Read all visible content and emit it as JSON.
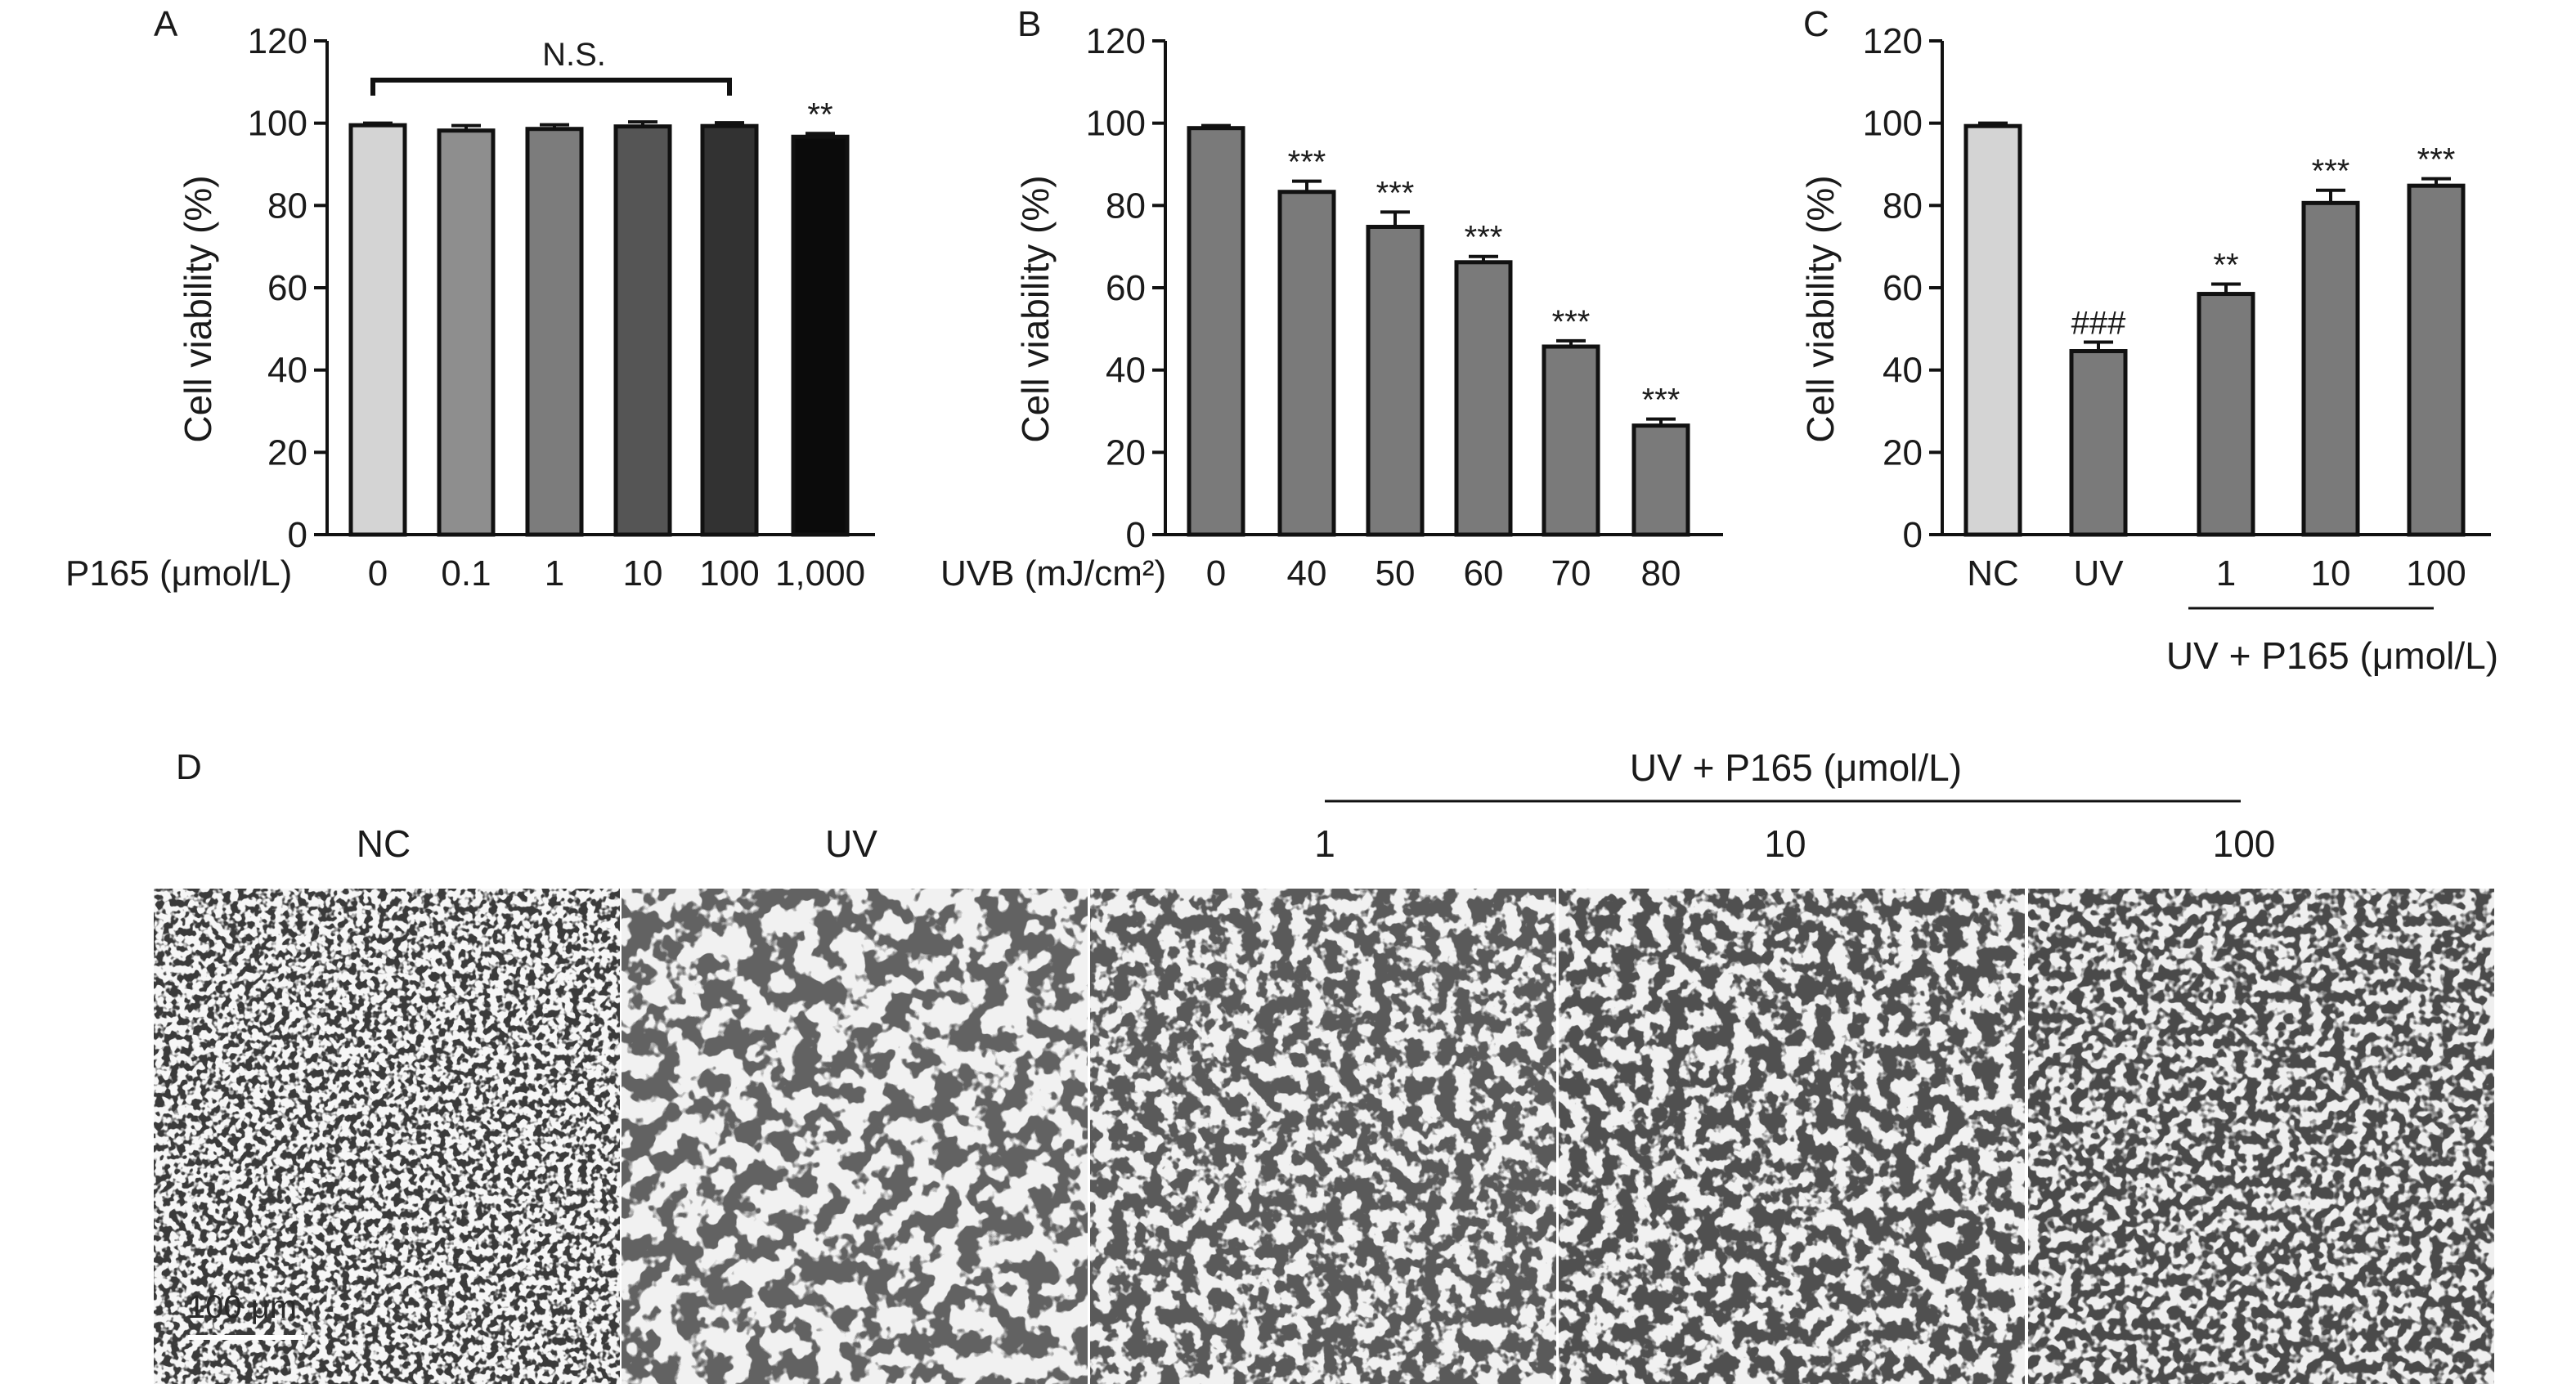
{
  "chart_data": [
    {
      "panel": "A",
      "type": "bar",
      "x_axis_label": "P165 (μmol/L)",
      "ylabel": "Cell viability (%)",
      "ylim": [
        0,
        120
      ],
      "yticks": [
        0,
        20,
        40,
        60,
        80,
        100,
        120
      ],
      "categories": [
        "0",
        "0.1",
        "1",
        "10",
        "100",
        "1,000"
      ],
      "values": [
        99.5,
        98.2,
        98.6,
        99.2,
        99.3,
        96.7
      ],
      "errors": [
        0.5,
        1.2,
        1.0,
        1.1,
        0.8,
        0.8
      ],
      "bar_colors": [
        "#d4d4d4",
        "#8e8e8e",
        "#7c7c7c",
        "#555555",
        "#323232",
        "#0b0b0b"
      ],
      "significance": [
        "",
        "",
        "",
        "",
        "",
        "**"
      ],
      "bracket_label": "N.S."
    },
    {
      "panel": "B",
      "type": "bar",
      "x_axis_label": "UVB (mJ/cm²)",
      "ylabel": "Cell viability (%)",
      "ylim": [
        0,
        120
      ],
      "yticks": [
        0,
        20,
        40,
        60,
        80,
        100,
        120
      ],
      "categories": [
        "0",
        "40",
        "50",
        "60",
        "70",
        "80"
      ],
      "values": [
        98.8,
        83.3,
        74.8,
        66.2,
        45.7,
        26.5
      ],
      "errors": [
        0.6,
        2.6,
        3.6,
        1.4,
        1.4,
        1.6
      ],
      "bar_colors": [
        "#7a7a7a",
        "#7a7a7a",
        "#7a7a7a",
        "#7a7a7a",
        "#7a7a7a",
        "#7a7a7a"
      ],
      "significance": [
        "",
        "***",
        "***",
        "***",
        "***",
        "***"
      ]
    },
    {
      "panel": "C",
      "type": "bar",
      "ylabel": "Cell viability (%)",
      "ylim": [
        0,
        120
      ],
      "yticks": [
        0,
        20,
        40,
        60,
        80,
        100,
        120
      ],
      "categories": [
        "NC",
        "UV",
        "1",
        "10",
        "100"
      ],
      "values": [
        99.3,
        44.6,
        58.5,
        80.6,
        84.8
      ],
      "errors": [
        0.7,
        2.2,
        2.4,
        3.1,
        1.7
      ],
      "bar_colors": [
        "#d4d4d4",
        "#7a7a7a",
        "#7a7a7a",
        "#7a7a7a",
        "#7a7a7a"
      ],
      "significance": [
        "",
        "###",
        "**",
        "***",
        "***"
      ],
      "group_label": "UV + P165 (μmol/L)"
    }
  ],
  "panel_d": {
    "letter": "D",
    "group_label": "UV + P165 (μmol/L)",
    "conditions": [
      "NC",
      "UV",
      "1",
      "10",
      "100"
    ],
    "scale_bar_label": "100 μm",
    "micrograph_description": "phase-contrast micrographs of cells"
  },
  "colors": {
    "bar_outline": "#111111",
    "light_gray": "#d4d4d4",
    "mid_gray": "#7a7a7a",
    "black": "#0b0b0b"
  }
}
